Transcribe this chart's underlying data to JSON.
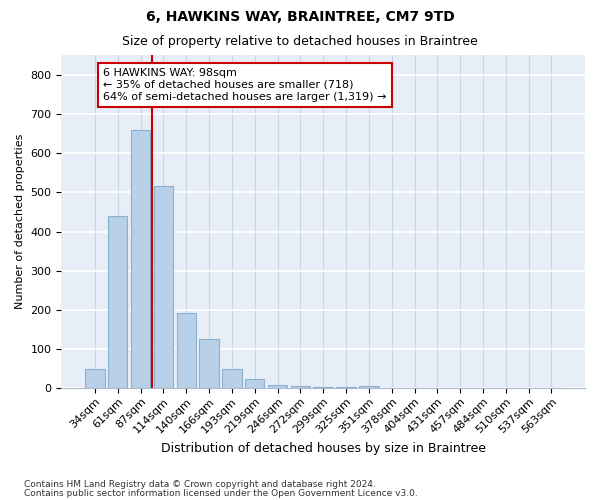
{
  "title": "6, HAWKINS WAY, BRAINTREE, CM7 9TD",
  "subtitle": "Size of property relative to detached houses in Braintree",
  "xlabel": "Distribution of detached houses by size in Braintree",
  "ylabel": "Number of detached properties",
  "footer_line1": "Contains HM Land Registry data © Crown copyright and database right 2024.",
  "footer_line2": "Contains public sector information licensed under the Open Government Licence v3.0.",
  "categories": [
    "34sqm",
    "61sqm",
    "87sqm",
    "114sqm",
    "140sqm",
    "166sqm",
    "193sqm",
    "219sqm",
    "246sqm",
    "272sqm",
    "299sqm",
    "325sqm",
    "351sqm",
    "378sqm",
    "404sqm",
    "431sqm",
    "457sqm",
    "484sqm",
    "510sqm",
    "537sqm",
    "563sqm"
  ],
  "values": [
    50,
    440,
    660,
    515,
    193,
    127,
    50,
    25,
    10,
    5,
    3,
    4,
    5,
    0,
    0,
    0,
    0,
    0,
    0,
    0,
    0
  ],
  "bar_color": "#b8d0e8",
  "bar_edge_color": "#8ab0d0",
  "background_color": "#e8eef8",
  "grid_color": "#d0d8e8",
  "property_line_x": 2.5,
  "property_line_color": "#cc0000",
  "annotation_text": "6 HAWKINS WAY: 98sqm\n← 35% of detached houses are smaller (718)\n64% of semi-detached houses are larger (1,319) →",
  "annotation_box_color": "#ffffff",
  "annotation_box_edgecolor": "#cc0000",
  "ylim": [
    0,
    850
  ],
  "yticks": [
    0,
    100,
    200,
    300,
    400,
    500,
    600,
    700,
    800
  ],
  "title_fontsize": 10,
  "subtitle_fontsize": 9,
  "ylabel_fontsize": 8,
  "xlabel_fontsize": 9,
  "tick_fontsize": 8,
  "annotation_fontsize": 8
}
